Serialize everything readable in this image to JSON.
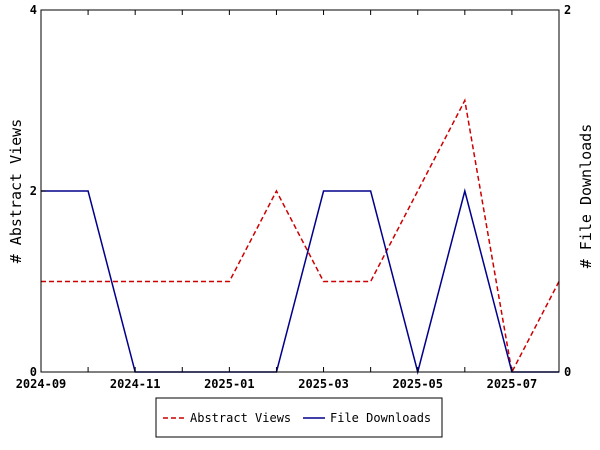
{
  "chart_data": {
    "type": "line",
    "x": [
      "2024-09",
      "2024-10",
      "2024-11",
      "2024-12",
      "2025-01",
      "2025-02",
      "2025-03",
      "2025-04",
      "2025-05",
      "2025-06",
      "2025-07",
      "2025-08"
    ],
    "x_tick_labels": [
      "2024-09",
      "2024-11",
      "2025-01",
      "2025-03",
      "2025-05",
      "2025-07"
    ],
    "ylabel": "# Abstract Views",
    "y2label": "# File Downloads",
    "ylim": [
      0,
      4
    ],
    "y2lim": [
      0,
      2
    ],
    "y_ticks": [
      0,
      2,
      4
    ],
    "y2_ticks": [
      0,
      2
    ],
    "grid": false,
    "legend_position": "bottom-center",
    "series": [
      {
        "name": "Abstract Views",
        "axis": "left",
        "color": "#cc0000",
        "style": "dashed",
        "values": [
          1,
          1,
          1,
          1,
          1,
          2,
          1,
          1,
          2,
          3,
          0,
          1
        ]
      },
      {
        "name": "File Downloads",
        "axis": "right",
        "color": "#00008b",
        "style": "solid",
        "values": [
          1,
          1,
          0,
          0,
          0,
          0,
          1,
          1,
          0,
          1,
          0,
          0
        ]
      }
    ]
  }
}
